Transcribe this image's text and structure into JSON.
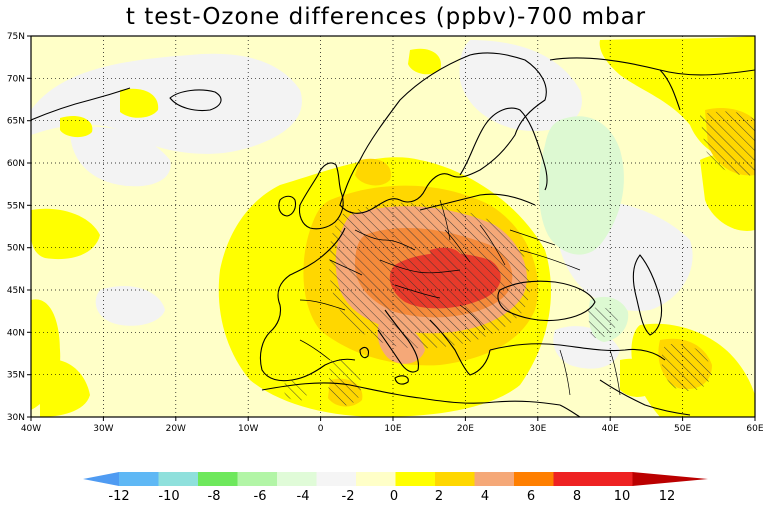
{
  "title": "t test-Ozone differences (ppbv)-700 mbar",
  "map": {
    "lon_range": [
      -40,
      60
    ],
    "lat_range": [
      30,
      75
    ],
    "lon_ticks": [
      "40W",
      "30W",
      "20W",
      "10W",
      "0",
      "10E",
      "20E",
      "30E",
      "40E",
      "50E",
      "60E"
    ],
    "lat_ticks": [
      "30N",
      "35N",
      "40N",
      "45N",
      "50N",
      "55N",
      "60N",
      "65N",
      "70N",
      "75N"
    ],
    "grid": "dotted",
    "significance_hatching": true
  },
  "colorbar": {
    "labels": [
      "-12",
      "-10",
      "-8",
      "-6",
      "-4",
      "-2",
      "0",
      "2",
      "4",
      "6",
      "8",
      "10",
      "12"
    ],
    "colors": [
      "#4f9bf2",
      "#5fb8f5",
      "#8fe0dc",
      "#6ee85c",
      "#b2f5a6",
      "#e0fbd8",
      "#f5f5f5",
      "#ffffc8",
      "#ffff00",
      "#ffd700",
      "#f5a878",
      "#ff7f00",
      "#ee2222",
      "#bb0000"
    ]
  }
}
